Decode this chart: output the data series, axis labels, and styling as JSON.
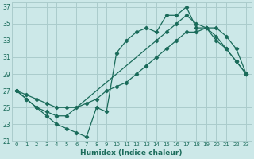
{
  "xlabel": "Humidex (Indice chaleur)",
  "xlim": [
    -0.5,
    23.5
  ],
  "ylim": [
    21,
    37.5
  ],
  "yticks": [
    21,
    23,
    25,
    27,
    29,
    31,
    33,
    35,
    37
  ],
  "xticks": [
    0,
    1,
    2,
    3,
    4,
    5,
    6,
    7,
    8,
    9,
    10,
    11,
    12,
    13,
    14,
    15,
    16,
    17,
    18,
    19,
    20,
    21,
    22,
    23
  ],
  "bg_color": "#cce8e8",
  "grid_color": "#aacccc",
  "line_color": "#1a6b5a",
  "line1_x": [
    0,
    1,
    2,
    3,
    4,
    5,
    6,
    7,
    8,
    9,
    10,
    11,
    12,
    13,
    14,
    15,
    16,
    17,
    18,
    19,
    20,
    21,
    22,
    23
  ],
  "line1_y": [
    27,
    26,
    25,
    24,
    23,
    22.5,
    22,
    21.5,
    25,
    24.5,
    31.5,
    33,
    34,
    34.5,
    34,
    36,
    36,
    37,
    34.5,
    34.5,
    33,
    32,
    30.5,
    29
  ],
  "line2_x": [
    0,
    1,
    2,
    3,
    4,
    5,
    14,
    15,
    16,
    17,
    18,
    19,
    20,
    21,
    22,
    23
  ],
  "line2_y": [
    27,
    26,
    25,
    24.5,
    24,
    24,
    33,
    34,
    35,
    36,
    35,
    34.5,
    33.5,
    32,
    30.5,
    29
  ],
  "line3_x": [
    0,
    1,
    2,
    3,
    4,
    5,
    6,
    7,
    8,
    9,
    10,
    11,
    12,
    13,
    14,
    15,
    16,
    17,
    18,
    19,
    20,
    21,
    22,
    23
  ],
  "line3_y": [
    27,
    26.5,
    26,
    25.5,
    25,
    25,
    25,
    25.5,
    26,
    27,
    27.5,
    28,
    29,
    30,
    31,
    32,
    33,
    34,
    34,
    34.5,
    34.5,
    33.5,
    32,
    29
  ]
}
